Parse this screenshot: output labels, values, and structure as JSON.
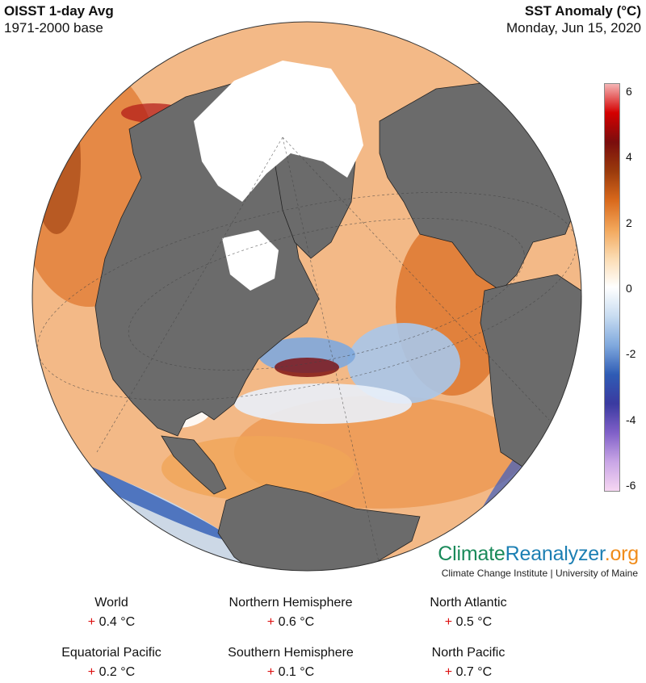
{
  "header": {
    "title": "OISST 1-day Avg",
    "base": "1971-2000 base",
    "variable": "SST Anomaly (°C)",
    "date": "Monday, Jun 15, 2020"
  },
  "colorbar": {
    "ticks": [
      "6",
      "4",
      "2",
      "0",
      "-2",
      "-4",
      "-6"
    ],
    "range": [
      -6,
      6
    ],
    "colors": [
      "#f6d6f2",
      "#c9a6e6",
      "#8060c8",
      "#3a3aa0",
      "#2f5cb5",
      "#7fa8dd",
      "#c8dcf1",
      "#ffffff",
      "#fbdcb3",
      "#f2a65a",
      "#d9691c",
      "#9a3a0c",
      "#7a0d0d",
      "#d40000",
      "#f5b5b5"
    ]
  },
  "map": {
    "projection": "orthographic",
    "ocean_color": "#f0b07a",
    "land_color": "#6b6b6b",
    "ice_color": "#ffffff"
  },
  "branding": {
    "part1": "Climate",
    "part2": "Reanalyzer",
    "part3": ".org",
    "subtitle": "Climate Change Institute | University of Maine"
  },
  "stats": [
    {
      "name": "World",
      "sign": "+",
      "value": "0.4 °C"
    },
    {
      "name": "Northern Hemisphere",
      "sign": "+",
      "value": "0.6 °C"
    },
    {
      "name": "North Atlantic",
      "sign": "+",
      "value": "0.5 °C"
    },
    {
      "name": "Equatorial Pacific",
      "sign": "+",
      "value": "0.2 °C"
    },
    {
      "name": "Southern Hemisphere",
      "sign": "+",
      "value": "0.1 °C"
    },
    {
      "name": "North Pacific",
      "sign": "+",
      "value": "0.7 °C"
    }
  ]
}
